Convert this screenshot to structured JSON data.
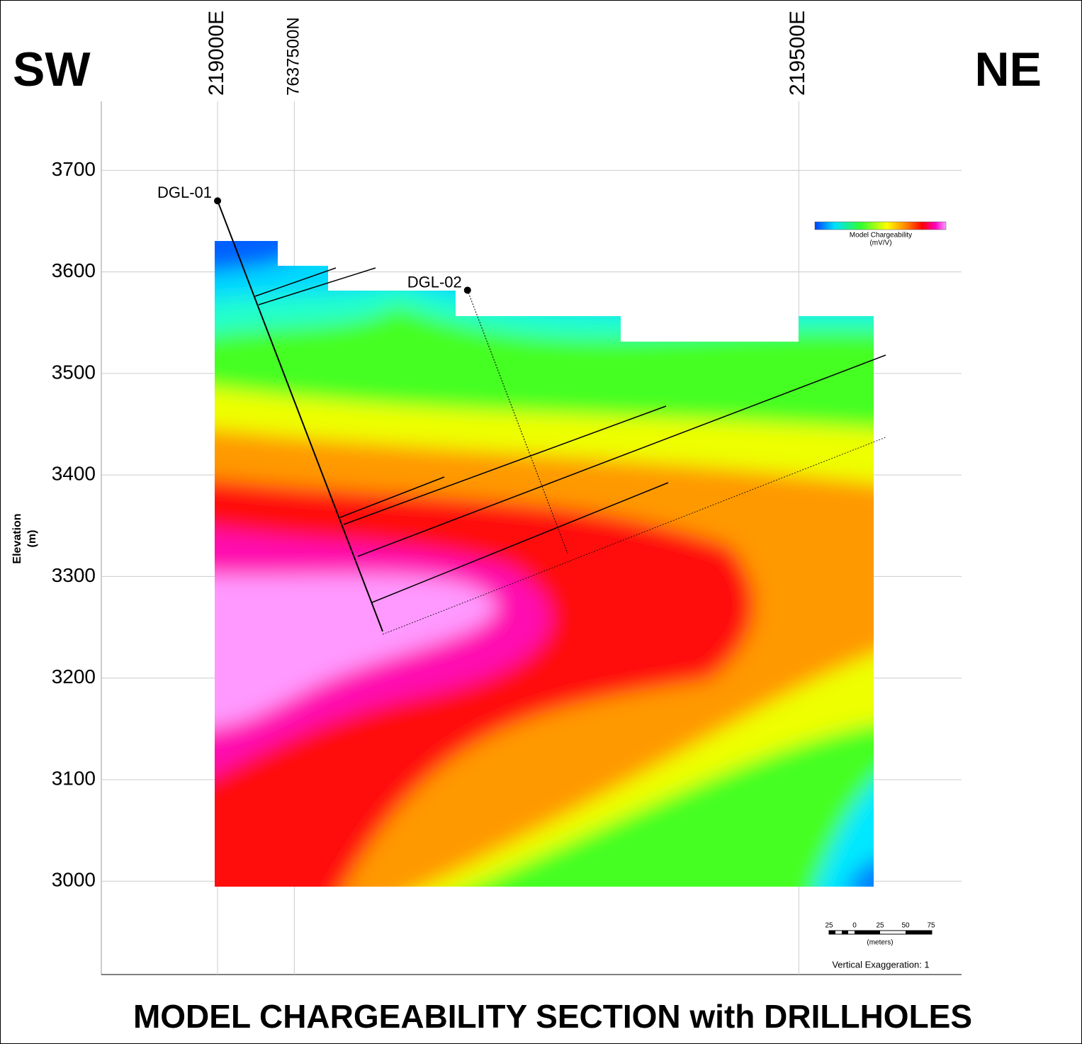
{
  "chart_data": {
    "type": "section",
    "title": "MODEL CHARGEABILITY SECTION with DRILLHOLES",
    "left_label": "SW",
    "right_label": "NE",
    "ylabel": "Elevation",
    "ylabel_unit": "(m)",
    "xlim": [
      218900,
      219640
    ],
    "ylim": [
      2908,
      3768
    ],
    "xticks": [
      {
        "value": 219000,
        "label": "219000E"
      },
      {
        "value": 219500,
        "label": "219500E"
      }
    ],
    "northing_line": {
      "x": 219066,
      "label": "7637500N"
    },
    "yticks": [
      3000,
      3100,
      3200,
      3300,
      3400,
      3500,
      3600,
      3700
    ],
    "grid": true,
    "series": [
      {
        "name": "DGL-01",
        "color": "#000000",
        "x": [
          219000,
          219142
        ],
        "values": [
          3670,
          3246
        ]
      },
      {
        "name": "DGL-02",
        "color": "#000000",
        "x": [
          219215,
          219301
        ],
        "values": [
          3582,
          3323
        ]
      }
    ],
    "colorbar": {
      "title": "Model Chargeability",
      "unit": "(mV/V)"
    },
    "scale_bar": {
      "labels": [
        25,
        0,
        25,
        50,
        75
      ],
      "unit": "(meters)"
    },
    "note": "Vertical Exaggeration: 1"
  }
}
